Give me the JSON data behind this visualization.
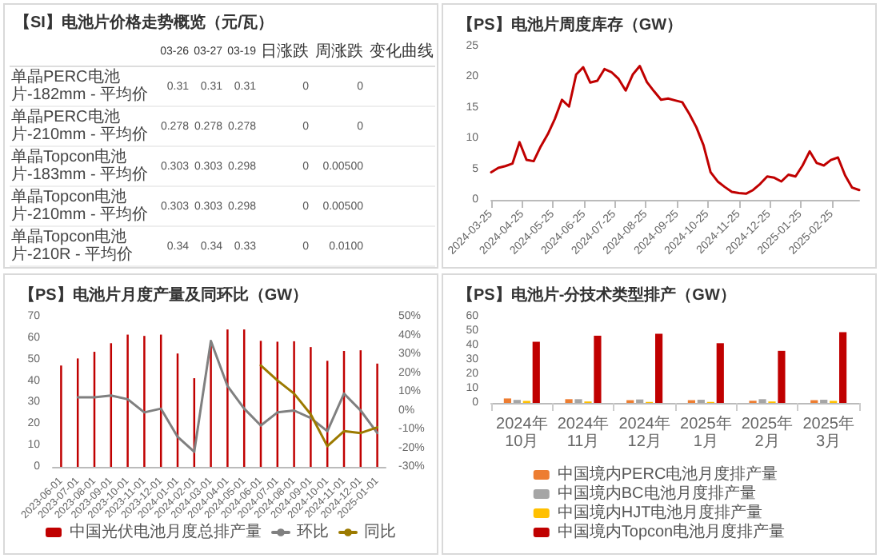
{
  "chart_data": [
    {
      "type": "other",
      "title": "【SI】电池片价格走势概览（元/瓦）",
      "categories": [
        "单晶PERC电池片-182mm - 平均价",
        "单晶PERC电池片-210mm - 平均价",
        "单晶Topcon电池片-183mm - 平均价",
        "单晶Topcon电池片-210mm - 平均价",
        "单晶Topcon电池片-210R - 平均价"
      ],
      "series": [
        {
          "name": "03-26",
          "values": [
            0.31,
            0.278,
            0.303,
            0.303,
            0.34
          ],
          "value_labels": [
            "0.31",
            "0.278",
            "0.303",
            "0.303",
            "0.34"
          ]
        },
        {
          "name": "03-27",
          "values": [
            0.31,
            0.278,
            0.303,
            0.303,
            0.34
          ],
          "value_labels": [
            "0.31",
            "0.278",
            "0.303",
            "0.303",
            "0.34"
          ]
        },
        {
          "name": "03-19",
          "values": [
            0.31,
            0.278,
            0.298,
            0.298,
            0.33
          ],
          "value_labels": [
            "0.31",
            "0.278",
            "0.298",
            "0.298",
            "0.33"
          ]
        },
        {
          "name": "日涨跌",
          "values": [
            0,
            0,
            0,
            0,
            0
          ],
          "value_labels": [
            "0",
            "0",
            "0",
            "0",
            "0"
          ]
        },
        {
          "name": "周涨跌",
          "values": [
            0,
            0,
            0.005,
            0.005,
            0.01
          ],
          "value_labels": [
            "0",
            "0",
            "0.00500",
            "0.00500",
            "0.0100"
          ]
        }
      ],
      "annotations": [
        "变化曲线"
      ]
    },
    {
      "type": "line",
      "title": "【PS】电池片周度库存（GW）",
      "x": [
        "2024-03-25",
        "2024-04-01",
        "2024-04-08",
        "2024-04-15",
        "2024-04-22",
        "2024-04-29",
        "2024-05-06",
        "2024-05-13",
        "2024-05-20",
        "2024-05-27",
        "2024-06-03",
        "2024-06-10",
        "2024-06-17",
        "2024-06-24",
        "2024-07-01",
        "2024-07-08",
        "2024-07-15",
        "2024-07-22",
        "2024-07-29",
        "2024-08-05",
        "2024-08-12",
        "2024-08-19",
        "2024-08-26",
        "2024-09-02",
        "2024-09-09",
        "2024-09-16",
        "2024-09-23",
        "2024-09-30",
        "2024-10-07",
        "2024-10-14",
        "2024-10-21",
        "2024-10-28",
        "2024-11-04",
        "2024-11-11",
        "2024-11-18",
        "2024-11-25",
        "2024-12-02",
        "2024-12-09",
        "2024-12-16",
        "2024-12-23",
        "2024-12-30",
        "2025-01-06",
        "2025-01-13",
        "2025-01-20",
        "2025-01-27",
        "2025-02-03",
        "2025-02-10",
        "2025-02-17",
        "2025-02-24",
        "2025-03-03",
        "2025-03-10",
        "2025-03-17",
        "2025-03-24"
      ],
      "series": [
        {
          "color": "#c00000",
          "values": [
            4.5,
            5.2,
            5.5,
            5.9,
            9.4,
            6.5,
            6.3,
            8.7,
            10.7,
            13.2,
            16.3,
            15.2,
            20.4,
            21.6,
            19.1,
            19.4,
            21.3,
            20.8,
            19.7,
            17.8,
            20.4,
            21.8,
            19.2,
            17.7,
            16.3,
            16.5,
            16.2,
            15.9,
            14.0,
            11.8,
            8.9,
            4.5,
            3.0,
            2.1,
            1.3,
            1.1,
            1.0,
            1.6,
            2.6,
            3.8,
            3.6,
            3.0,
            4.1,
            3.8,
            5.6,
            7.9,
            6.0,
            5.6,
            6.5,
            6.9,
            4.0,
            2.0,
            1.6
          ]
        }
      ],
      "xlim": [
        "2024-03-25",
        "2025-03-24"
      ],
      "xticks": [
        "2024-03-25",
        "2024-04-25",
        "2024-05-25",
        "2024-06-25",
        "2024-07-25",
        "2024-08-25",
        "2024-09-25",
        "2024-10-25",
        "2024-11-25",
        "2024-12-25",
        "2025-01-25",
        "2025-02-25"
      ],
      "ylim": [
        0,
        25
      ],
      "yticks": [
        0,
        5,
        10,
        15,
        20,
        25
      ],
      "marker": "none",
      "line_style": "solid"
    },
    {
      "type": "bar",
      "title": "【PS】电池片月度产量及同环比（GW）",
      "categories": [
        "2023-06-01",
        "2023-07-01",
        "2023-08-01",
        "2023-09-01",
        "2023-10-01",
        "2023-11-01",
        "2023-12-01",
        "2024-01-01",
        "2024-02-01",
        "2024-03-01",
        "2024-04-01",
        "2024-05-01",
        "2024-06-01",
        "2024-07-01",
        "2024-08-01",
        "2024-09-01",
        "2024-10-01",
        "2024-11-01",
        "2024-12-01",
        "2025-01-01"
      ],
      "series": [
        {
          "name": "中国光伏电池月度总排产量",
          "type": "bar",
          "color": "#c00000",
          "values": [
            47.2,
            50.5,
            53.6,
            57.6,
            61.6,
            61,
            61.6,
            52.8,
            41.3,
            56.5,
            64,
            64,
            58.7,
            58.3,
            58.5,
            55.8,
            49.4,
            54,
            54.3,
            48.1
          ]
        },
        {
          "name": "环比",
          "type": "line",
          "axis": "y2",
          "color": "#808080",
          "values": [
            null,
            7,
            7,
            8,
            6,
            -1,
            1,
            -14,
            -22,
            37,
            13,
            1,
            -8,
            -1,
            0,
            -4,
            -11,
            9,
            0,
            -12
          ]
        },
        {
          "name": "同比",
          "type": "line",
          "axis": "y2",
          "color": "#9c7a00",
          "values": [
            null,
            null,
            null,
            null,
            null,
            null,
            null,
            null,
            null,
            null,
            null,
            null,
            24,
            16,
            9,
            -2,
            -19,
            -11,
            -12,
            -9
          ]
        }
      ],
      "ylim": [
        0,
        70
      ],
      "yticks": [
        0,
        10,
        20,
        30,
        40,
        50,
        60,
        70
      ],
      "y2lim": [
        -30,
        50
      ],
      "y2ticks": [
        {
          "value": -30,
          "label": "-30%"
        },
        {
          "value": -20,
          "label": "-20%"
        },
        {
          "value": -10,
          "label": "-10%"
        },
        {
          "value": 0,
          "label": "0%"
        },
        {
          "value": 10,
          "label": "10%"
        },
        {
          "value": 20,
          "label": "20%"
        },
        {
          "value": 30,
          "label": "30%"
        },
        {
          "value": 40,
          "label": "40%"
        },
        {
          "value": 50,
          "label": "50%"
        }
      ],
      "marker": "none",
      "line_style": "solid",
      "legend": "bottom"
    },
    {
      "type": "bar",
      "title": "【PS】电池片-分技术类型排产（GW）",
      "categories": [
        "2024年10月",
        "2024年11月",
        "2024年12月",
        "2025年1月",
        "2025年2月",
        "2025年3月"
      ],
      "series": [
        {
          "name": "中国境内PERC电池月度排产量",
          "color": "#ed7d31",
          "values": [
            3.1,
            2.6,
            1.9,
            1.9,
            1.5,
            1.9
          ]
        },
        {
          "name": "中国境内BC电池月度排产量",
          "color": "#a5a5a5",
          "values": [
            2.1,
            2.6,
            2.4,
            2.2,
            2.6,
            2.2
          ]
        },
        {
          "name": "中国境内HJT电池月度排产量",
          "color": "#ffc000",
          "values": [
            1.4,
            1.0,
            0.7,
            0.7,
            1.0,
            1.4
          ]
        },
        {
          "name": "中国境内Topcon电池月度排产量",
          "color": "#c00000",
          "values": [
            42.5,
            46.7,
            48,
            41.5,
            36.2,
            49.2
          ]
        }
      ],
      "ylim": [
        0,
        60
      ],
      "yticks": [
        0,
        10,
        20,
        30,
        40,
        50,
        60
      ],
      "legend": "bottom"
    }
  ]
}
